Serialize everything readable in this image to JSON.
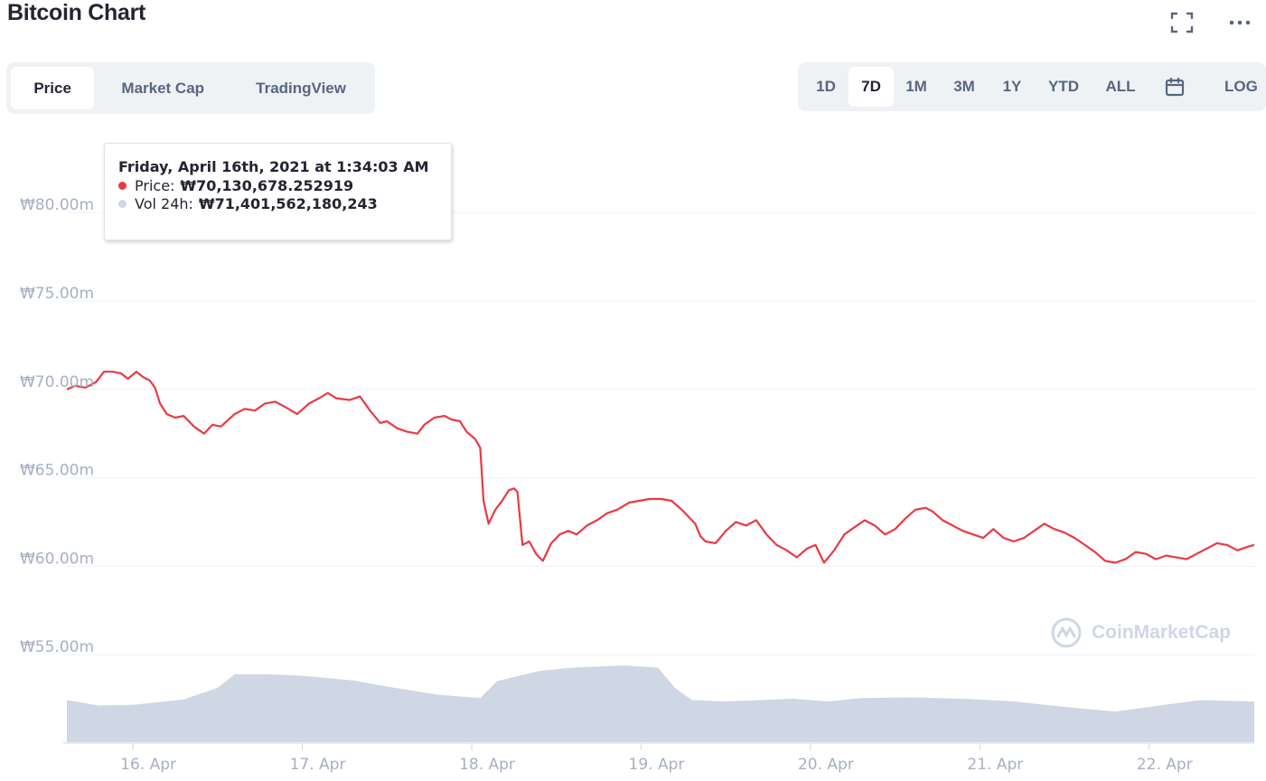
{
  "header": {
    "title": "Bitcoin Chart"
  },
  "icons": {
    "fullscreen": "fullscreen-icon",
    "more": "more-icon",
    "calendar": "calendar-icon",
    "logo": "coinmarketcap-logo-icon"
  },
  "tabs": [
    {
      "label": "Price",
      "active": true
    },
    {
      "label": "Market Cap",
      "active": false
    },
    {
      "label": "TradingView",
      "active": false
    }
  ],
  "ranges": [
    {
      "label": "1D",
      "active": false
    },
    {
      "label": "7D",
      "active": true
    },
    {
      "label": "1M",
      "active": false
    },
    {
      "label": "3M",
      "active": false
    },
    {
      "label": "1Y",
      "active": false
    },
    {
      "label": "YTD",
      "active": false
    },
    {
      "label": "ALL",
      "active": false
    }
  ],
  "log_label": "LOG",
  "tooltip": {
    "title": "Friday, April 16th, 2021 at 1:34:03 AM",
    "price_label": "Price:",
    "price_value": "₩70,130,678.252919",
    "vol_label": "Vol 24h:",
    "vol_value": "₩71,401,562,180,243"
  },
  "watermark": "CoinMarketCap",
  "colors": {
    "price_line": "#ea3943",
    "volume_fill": "#cfd6e4",
    "grid": "#eff2f5",
    "axis_text": "#a6b0c3"
  },
  "chart_data": {
    "type": "line",
    "title": "Bitcoin Chart",
    "y_axis": {
      "ticks": [
        55,
        60,
        65,
        70,
        75,
        80
      ],
      "tick_labels": [
        "₩55.00m",
        "₩60.00m",
        "₩65.00m",
        "₩70.00m",
        "₩75.00m",
        "₩80.00m"
      ],
      "range": [
        50,
        82
      ],
      "unit": "₩m"
    },
    "x_axis": {
      "ticks": [
        1,
        2,
        3,
        4,
        5,
        6,
        7
      ],
      "tick_labels": [
        "16. Apr",
        "17. Apr",
        "18. Apr",
        "19. Apr",
        "20. Apr",
        "21. Apr",
        "22. Apr"
      ],
      "range": [
        0.61,
        7.62
      ]
    },
    "grid": true,
    "series": [
      {
        "kind": "line",
        "points": [
          [
            0.61,
            70.0
          ],
          [
            0.66,
            70.2
          ],
          [
            0.72,
            70.1
          ],
          [
            0.78,
            70.4
          ],
          [
            0.83,
            71.0
          ],
          [
            0.88,
            71.0
          ],
          [
            0.93,
            70.9
          ],
          [
            0.97,
            70.6
          ],
          [
            1.02,
            71.0
          ],
          [
            1.06,
            70.7
          ],
          [
            1.1,
            70.5
          ],
          [
            1.13,
            70.1
          ],
          [
            1.16,
            69.2
          ],
          [
            1.2,
            68.6
          ],
          [
            1.25,
            68.4
          ],
          [
            1.3,
            68.5
          ],
          [
            1.36,
            67.9
          ],
          [
            1.42,
            67.5
          ],
          [
            1.47,
            68.0
          ],
          [
            1.52,
            67.9
          ],
          [
            1.6,
            68.6
          ],
          [
            1.66,
            68.9
          ],
          [
            1.72,
            68.8
          ],
          [
            1.78,
            69.2
          ],
          [
            1.84,
            69.3
          ],
          [
            1.9,
            69.0
          ],
          [
            1.97,
            68.6
          ],
          [
            2.04,
            69.2
          ],
          [
            2.1,
            69.5
          ],
          [
            2.15,
            69.8
          ],
          [
            2.2,
            69.5
          ],
          [
            2.28,
            69.4
          ],
          [
            2.34,
            69.6
          ],
          [
            2.4,
            68.8
          ],
          [
            2.46,
            68.1
          ],
          [
            2.5,
            68.2
          ],
          [
            2.56,
            67.8
          ],
          [
            2.62,
            67.6
          ],
          [
            2.68,
            67.5
          ],
          [
            2.72,
            68.0
          ],
          [
            2.78,
            68.4
          ],
          [
            2.84,
            68.5
          ],
          [
            2.88,
            68.3
          ],
          [
            2.93,
            68.2
          ],
          [
            2.97,
            67.6
          ],
          [
            3.02,
            67.2
          ],
          [
            3.05,
            66.7
          ],
          [
            3.07,
            63.7
          ],
          [
            3.1,
            62.4
          ],
          [
            3.14,
            63.2
          ],
          [
            3.18,
            63.7
          ],
          [
            3.22,
            64.3
          ],
          [
            3.25,
            64.4
          ],
          [
            3.27,
            64.2
          ],
          [
            3.3,
            61.2
          ],
          [
            3.34,
            61.4
          ],
          [
            3.38,
            60.7
          ],
          [
            3.42,
            60.3
          ],
          [
            3.47,
            61.3
          ],
          [
            3.52,
            61.8
          ],
          [
            3.57,
            62.0
          ],
          [
            3.62,
            61.8
          ],
          [
            3.68,
            62.3
          ],
          [
            3.74,
            62.6
          ],
          [
            3.8,
            63.0
          ],
          [
            3.86,
            63.2
          ],
          [
            3.93,
            63.6
          ],
          [
            3.99,
            63.7
          ],
          [
            4.05,
            63.8
          ],
          [
            4.12,
            63.8
          ],
          [
            4.18,
            63.7
          ],
          [
            4.24,
            63.2
          ],
          [
            4.28,
            62.8
          ],
          [
            4.32,
            62.4
          ],
          [
            4.35,
            61.7
          ],
          [
            4.38,
            61.4
          ],
          [
            4.44,
            61.3
          ],
          [
            4.5,
            62.0
          ],
          [
            4.56,
            62.5
          ],
          [
            4.62,
            62.3
          ],
          [
            4.68,
            62.6
          ],
          [
            4.74,
            61.8
          ],
          [
            4.8,
            61.2
          ],
          [
            4.86,
            60.9
          ],
          [
            4.92,
            60.5
          ],
          [
            4.98,
            61.0
          ],
          [
            5.03,
            61.2
          ],
          [
            5.08,
            60.2
          ],
          [
            5.14,
            60.9
          ],
          [
            5.2,
            61.8
          ],
          [
            5.26,
            62.2
          ],
          [
            5.32,
            62.6
          ],
          [
            5.38,
            62.3
          ],
          [
            5.44,
            61.8
          ],
          [
            5.5,
            62.1
          ],
          [
            5.56,
            62.7
          ],
          [
            5.62,
            63.2
          ],
          [
            5.68,
            63.3
          ],
          [
            5.72,
            63.1
          ],
          [
            5.78,
            62.6
          ],
          [
            5.84,
            62.3
          ],
          [
            5.9,
            62.0
          ],
          [
            5.96,
            61.8
          ],
          [
            6.02,
            61.6
          ],
          [
            6.08,
            62.1
          ],
          [
            6.14,
            61.6
          ],
          [
            6.2,
            61.4
          ],
          [
            6.26,
            61.6
          ],
          [
            6.32,
            62.0
          ],
          [
            6.38,
            62.4
          ],
          [
            6.44,
            62.1
          ],
          [
            6.5,
            61.9
          ],
          [
            6.56,
            61.6
          ],
          [
            6.62,
            61.2
          ],
          [
            6.68,
            60.8
          ],
          [
            6.74,
            60.3
          ],
          [
            6.8,
            60.2
          ],
          [
            6.86,
            60.4
          ],
          [
            6.92,
            60.8
          ],
          [
            6.98,
            60.7
          ],
          [
            7.04,
            60.4
          ],
          [
            7.1,
            60.6
          ],
          [
            7.16,
            60.5
          ],
          [
            7.22,
            60.4
          ],
          [
            7.28,
            60.7
          ],
          [
            7.34,
            61.0
          ],
          [
            7.4,
            61.3
          ],
          [
            7.46,
            61.2
          ],
          [
            7.52,
            60.9
          ],
          [
            7.58,
            61.1
          ],
          [
            7.62,
            61.2
          ]
        ]
      },
      {
        "kind": "volume",
        "unit": "relative",
        "points": [
          [
            0.61,
            0.62
          ],
          [
            0.8,
            0.54
          ],
          [
            1.0,
            0.55
          ],
          [
            1.3,
            0.63
          ],
          [
            1.5,
            0.8
          ],
          [
            1.6,
            1.0
          ],
          [
            1.8,
            1.0
          ],
          [
            2.0,
            0.98
          ],
          [
            2.3,
            0.91
          ],
          [
            2.5,
            0.82
          ],
          [
            2.8,
            0.7
          ],
          [
            3.05,
            0.65
          ],
          [
            3.15,
            0.9
          ],
          [
            3.4,
            1.05
          ],
          [
            3.6,
            1.1
          ],
          [
            3.9,
            1.13
          ],
          [
            4.1,
            1.1
          ],
          [
            4.2,
            0.8
          ],
          [
            4.3,
            0.62
          ],
          [
            4.5,
            0.6
          ],
          [
            4.9,
            0.64
          ],
          [
            5.1,
            0.6
          ],
          [
            5.3,
            0.65
          ],
          [
            5.6,
            0.66
          ],
          [
            5.9,
            0.64
          ],
          [
            6.2,
            0.6
          ],
          [
            6.5,
            0.52
          ],
          [
            6.8,
            0.45
          ],
          [
            7.0,
            0.52
          ],
          [
            7.3,
            0.62
          ],
          [
            7.62,
            0.6
          ]
        ]
      }
    ]
  }
}
